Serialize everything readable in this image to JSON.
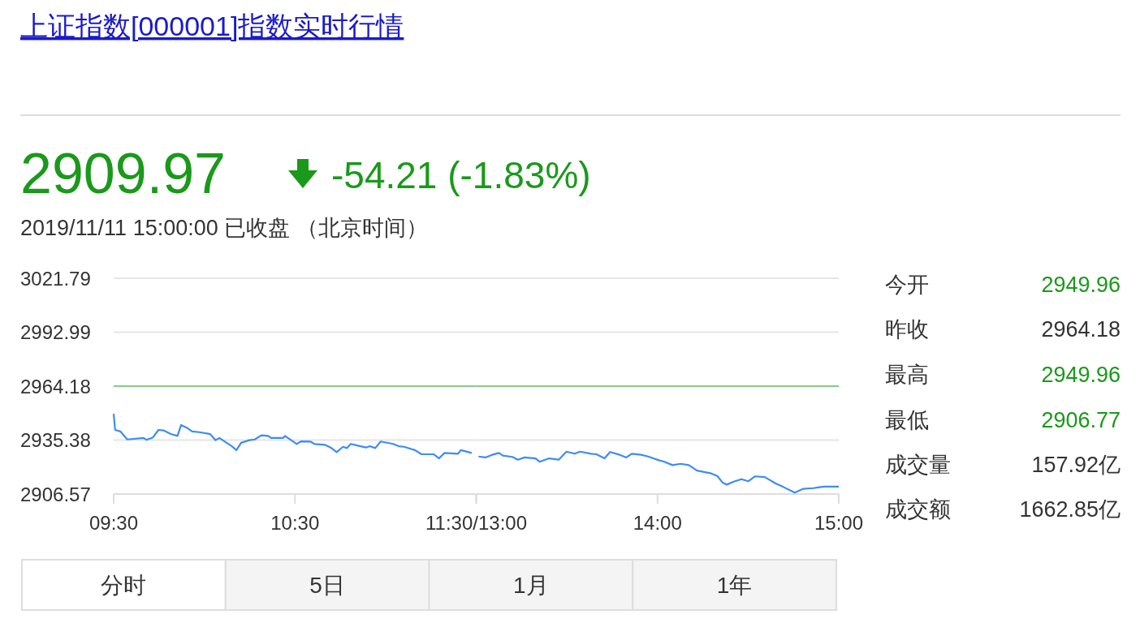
{
  "chart_data": [
    {
      "type": "line",
      "title": "上证指数[000001]指数实时行情",
      "annotations": [
        "2909.97",
        "-54.21 (-1.83%)",
        "2019/11/11 15:00:00  已收盘 （北京时间）",
        "分时",
        "5日",
        "1月",
        "1年"
      ],
      "x": [
        9.5,
        9.508,
        9.537,
        9.575,
        9.665,
        9.68,
        9.717,
        9.747,
        9.777,
        9.815,
        9.852,
        9.872,
        9.903,
        9.933,
        9.972,
        10.032,
        10.062,
        10.083,
        10.152,
        10.177,
        10.203,
        10.248,
        10.278,
        10.315,
        10.353,
        10.368,
        10.435,
        10.445,
        10.51,
        10.533,
        10.585,
        10.607,
        10.667,
        10.697,
        10.73,
        10.765,
        10.787,
        10.808,
        10.862,
        10.892,
        10.913,
        10.943,
        10.973,
        11.042,
        11.072,
        11.102,
        11.162,
        11.198,
        11.265,
        11.295,
        11.325,
        11.4,
        11.415,
        11.475
      ],
      "series": [
        {
          "color": "#3d8cf5",
          "values": [
            2949.4,
            2940.8,
            2940.0,
            2935.7,
            2936.5,
            2935.5,
            2936.8,
            2940.8,
            2940.5,
            2938.6,
            2937.6,
            2943.4,
            2942.0,
            2940.0,
            2939.6,
            2938.6,
            2935.3,
            2936.5,
            2932.1,
            2930.0,
            2933.9,
            2935.3,
            2935.7,
            2937.9,
            2937.6,
            2936.5,
            2936.5,
            2937.6,
            2933.3,
            2934.7,
            2934.6,
            2933.3,
            2932.8,
            2931.4,
            2928.9,
            2931.8,
            2931.1,
            2933.3,
            2932.1,
            2931.4,
            2932.1,
            2931.1,
            2934.6,
            2933.3,
            2932.1,
            2931.8,
            2930.0,
            2927.8,
            2927.8,
            2925.6,
            2928.5,
            2928.1,
            2930.0,
            2928.5
          ]
        }
      ],
      "xlim": [
        9.5,
        11.5
      ],
      "xticks": [
        {
          "value": 9.5,
          "label": "09:30"
        },
        {
          "value": 10.5,
          "label": "10:30"
        },
        {
          "value": 11.5,
          "label": "11:30/13:00"
        }
      ],
      "ylim": [
        2906.57,
        3021.79
      ],
      "yticks": [
        2906.57,
        2935.38,
        2964.18,
        2992.99,
        3021.79
      ],
      "ref_lines": [
        {
          "axis": "y",
          "value": 2964.18,
          "color": "#86cc86"
        }
      ],
      "grid": "y"
    },
    {
      "type": "line",
      "tick_labels": "x",
      "x": [
        13.013,
        13.05,
        13.088,
        13.125,
        13.147,
        13.2,
        13.23,
        13.267,
        13.327,
        13.35,
        13.402,
        13.455,
        13.498,
        13.543,
        13.573,
        13.633,
        13.663,
        13.708,
        13.738,
        13.792,
        13.828,
        13.858,
        13.91,
        13.948,
        14.008,
        14.038,
        14.083,
        14.128,
        14.173,
        14.218,
        14.292,
        14.33,
        14.36,
        14.382,
        14.427,
        14.463,
        14.502,
        14.538,
        14.592,
        14.652,
        14.697,
        14.757,
        14.802,
        14.86,
        14.892,
        14.92,
        15
      ],
      "series": [
        {
          "color": "#3d8cf5",
          "values": [
            2926.6,
            2926.1,
            2927.5,
            2928.5,
            2927.1,
            2926.4,
            2924.9,
            2926.1,
            2925.6,
            2923.8,
            2925.6,
            2924.9,
            2929.2,
            2928.1,
            2929.2,
            2928.1,
            2927.8,
            2925.6,
            2929.0,
            2927.5,
            2926.1,
            2928.1,
            2927.5,
            2926.6,
            2924.6,
            2923.8,
            2922.0,
            2922.7,
            2922.0,
            2919.1,
            2917.7,
            2916.2,
            2912.6,
            2911.6,
            2913.4,
            2914.5,
            2913.4,
            2916.0,
            2915.6,
            2912.2,
            2910.2,
            2907.3,
            2909.3,
            2909.7,
            2910.2,
            2910.5,
            2910.5
          ]
        }
      ],
      "xlim": [
        13,
        15
      ],
      "xticks": [
        {
          "value": 13,
          "label": null
        },
        {
          "value": 14,
          "label": "14:00"
        },
        {
          "value": 15,
          "label": "15:00"
        }
      ],
      "ylim": [
        2906.57,
        3021.79
      ],
      "yticks": [
        2906.57,
        2935.38,
        2964.18,
        2992.99,
        3021.79
      ],
      "ref_lines": [
        {
          "axis": "y",
          "value": 2964.18,
          "color": "#86cc86"
        }
      ],
      "grid": "y"
    },
    {
      "type": "other",
      "categories": [
        "今开",
        "昨收",
        "最高",
        "最低",
        "成交量",
        "成交额"
      ],
      "values": [
        2949.96,
        2964.18,
        2949.96,
        2906.77,
        157.92,
        1662.85
      ],
      "value_labels": [
        "2949.96",
        "2964.18",
        "2949.96",
        "2906.77",
        "157.92亿",
        "1662.85亿"
      ],
      "colors": [
        "#1a991a",
        "#333333",
        "#1a991a",
        "#1a991a",
        "#333333",
        "#333333"
      ]
    }
  ]
}
